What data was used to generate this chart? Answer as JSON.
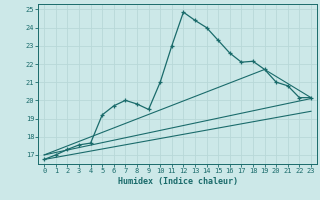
{
  "xlabel": "Humidex (Indice chaleur)",
  "bg_color": "#cce8e8",
  "grid_color": "#b8d8d8",
  "line_color": "#1a6b6b",
  "xlim": [
    -0.5,
    23.5
  ],
  "ylim": [
    16.5,
    25.3
  ],
  "xticks": [
    0,
    1,
    2,
    3,
    4,
    5,
    6,
    7,
    8,
    9,
    10,
    11,
    12,
    13,
    14,
    15,
    16,
    17,
    18,
    19,
    20,
    21,
    22,
    23
  ],
  "yticks": [
    17,
    18,
    19,
    20,
    21,
    22,
    23,
    24,
    25
  ],
  "line1_x": [
    0,
    1,
    2,
    3,
    4,
    5,
    6,
    7,
    8,
    9,
    10,
    11,
    12,
    13,
    14,
    15,
    16,
    17,
    18,
    19,
    20,
    21,
    22,
    23
  ],
  "line1_y": [
    16.75,
    17.0,
    17.3,
    17.55,
    17.65,
    19.2,
    19.7,
    20.0,
    19.8,
    19.5,
    21.0,
    23.0,
    24.85,
    24.4,
    24.0,
    23.3,
    22.6,
    22.1,
    22.15,
    21.7,
    21.0,
    20.8,
    20.15,
    20.15
  ],
  "line2_x": [
    0,
    19,
    23
  ],
  "line2_y": [
    17.0,
    21.7,
    20.15
  ],
  "line3_x": [
    0,
    23
  ],
  "line3_y": [
    17.0,
    20.1
  ],
  "line4_x": [
    0,
    23
  ],
  "line4_y": [
    16.75,
    19.4
  ]
}
